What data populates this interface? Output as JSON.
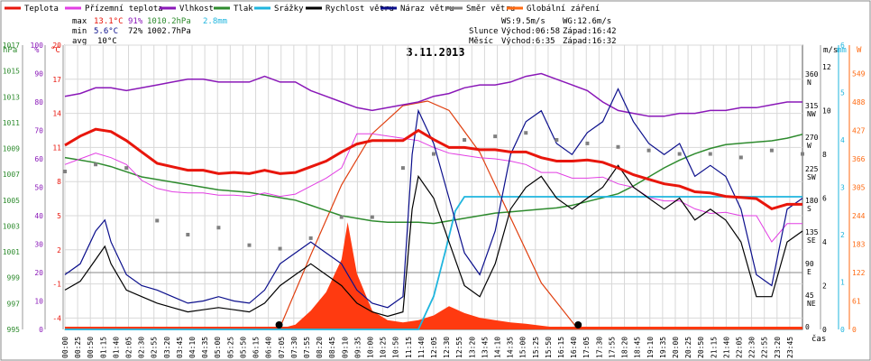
{
  "legend": [
    {
      "label": "Teplota",
      "color": "#e8160c"
    },
    {
      "label": "Přízemní teplota",
      "color": "#e23ee3"
    },
    {
      "label": "Vlhkost",
      "color": "#8a18b8"
    },
    {
      "label": "Tlak",
      "color": "#2e8b2e"
    },
    {
      "label": "Srážky",
      "color": "#1fb5de"
    },
    {
      "label": "Rychlost větru",
      "color": "#000000"
    },
    {
      "label": "Náraz větru",
      "color": "#0b0f8c"
    },
    {
      "label": "Směr větru",
      "color": "#808080"
    },
    {
      "label": "Globální záření",
      "color": "#ff6a12"
    }
  ],
  "stats": {
    "max": {
      "label": "max",
      "temp": "13.1°C",
      "hum": "91%",
      "press": "1010.2hPa",
      "rain": "2.8mm"
    },
    "min": {
      "label": "min",
      "temp": "5.6°C",
      "hum": "72%",
      "press": "1002.7hPa"
    },
    "avg": {
      "label": "avg",
      "temp": "10°C"
    }
  },
  "wind_info": {
    "ws": "WS:9.5m/s",
    "wg": "WG:12.6m/s"
  },
  "sun": {
    "label": "Slunce",
    "rise": "Východ:06:58",
    "set": "Západ:16:42"
  },
  "moon": {
    "label": "Měsíc",
    "rise": "Východ:6:35",
    "set": "Západ:16:32"
  },
  "chart_data": {
    "type": "line",
    "title": "3.11.2013",
    "xlabel": "čas",
    "x_ticks": [
      "00:00",
      "00:25",
      "00:50",
      "01:15",
      "01:40",
      "02:05",
      "02:30",
      "02:55",
      "03:20",
      "03:45",
      "04:10",
      "04:35",
      "05:00",
      "05:25",
      "05:50",
      "06:15",
      "06:40",
      "07:05",
      "07:30",
      "07:55",
      "08:20",
      "08:45",
      "09:10",
      "09:35",
      "10:00",
      "10:25",
      "10:50",
      "11:15",
      "11:40",
      "12:05",
      "12:30",
      "12:55",
      "13:20",
      "13:45",
      "14:10",
      "14:35",
      "15:00",
      "15:25",
      "15:50",
      "16:15",
      "16:40",
      "17:05",
      "17:30",
      "17:55",
      "18:20",
      "18:45",
      "19:10",
      "19:35",
      "20:00",
      "20:25",
      "20:50",
      "21:15",
      "21:40",
      "22:05",
      "22:30",
      "22:55",
      "23:20",
      "23:45"
    ],
    "axes": {
      "pressure": {
        "label": "hPa",
        "ticks": [
          "1017",
          "1015",
          "1013",
          "1011",
          "1009",
          "1007",
          "1005",
          "1003",
          "1001",
          "999",
          "997",
          "995"
        ],
        "range": [
          995,
          1017
        ]
      },
      "humidity": {
        "label": "%",
        "ticks": [
          "100",
          "90",
          "80",
          "70",
          "60",
          "50",
          "40",
          "30",
          "20",
          "10",
          "0"
        ],
        "range": [
          0,
          100
        ]
      },
      "temperature": {
        "label": "°C",
        "ticks": [
          "20",
          "17",
          "14",
          "11",
          "8",
          "5",
          "2",
          "-1",
          "-4"
        ],
        "range": [
          -5,
          20
        ]
      },
      "wind_direction": {
        "ticks": [
          "360",
          "315",
          "270",
          "225",
          "180",
          "135",
          "90",
          "45",
          "0"
        ],
        "compass": [
          "N",
          "NW",
          "W",
          "SW",
          "S",
          "SE",
          "E",
          "NE",
          ""
        ]
      },
      "wind_speed": {
        "label": "m/s",
        "ticks": [
          "12",
          "10",
          "8",
          "6",
          "4",
          "2",
          "0"
        ],
        "range": [
          0,
          13
        ]
      },
      "rain": {
        "label": "mm",
        "ticks": [
          "6",
          "5",
          "4",
          "3",
          "2",
          "1",
          "0"
        ],
        "range": [
          0,
          6
        ]
      },
      "radiation": {
        "label": "W",
        "ticks": [
          "549",
          "488",
          "427",
          "366",
          "305",
          "244",
          "183",
          "122",
          "61",
          "0"
        ],
        "range": [
          0,
          610
        ]
      }
    },
    "series": [
      {
        "name": "Teplota",
        "unit": "°C",
        "x": [
          0,
          0.5,
          1,
          1.5,
          2,
          2.5,
          3,
          3.5,
          4,
          4.5,
          5,
          5.5,
          6,
          6.5,
          7,
          7.5,
          8,
          8.5,
          9,
          9.5,
          10,
          10.5,
          11,
          11.5,
          12,
          12.5,
          13,
          13.5,
          14,
          14.5,
          15,
          15.5,
          16,
          16.5,
          17,
          17.5,
          18,
          18.5,
          19,
          19.5,
          20,
          20.5,
          21,
          21.5,
          22,
          22.5,
          23,
          23.5,
          24
        ],
        "y": [
          11.2,
          12,
          12.6,
          12.4,
          11.6,
          10.6,
          9.6,
          9.3,
          9.0,
          9.0,
          8.7,
          8.8,
          8.7,
          9.0,
          8.7,
          8.8,
          9.3,
          9.8,
          10.6,
          11.3,
          11.6,
          11.6,
          11.6,
          12.5,
          11.7,
          11.0,
          11.0,
          10.8,
          10.8,
          10.6,
          10.6,
          10.1,
          9.8,
          9.8,
          9.9,
          9.7,
          9.2,
          8.6,
          8.2,
          7.8,
          7.6,
          7.1,
          7.0,
          6.7,
          6.6,
          6.5,
          5.6,
          6.0,
          6.0
        ]
      },
      {
        "name": "Přízemní teplota",
        "unit": "°C",
        "x": [
          0,
          0.5,
          1,
          1.5,
          2,
          2.5,
          3,
          3.5,
          4,
          4.5,
          5,
          5.5,
          6,
          6.5,
          7,
          7.5,
          8,
          8.5,
          9,
          9.5,
          10,
          10.5,
          11,
          11.5,
          12,
          12.5,
          13,
          13.5,
          14,
          14.5,
          15,
          15.5,
          16,
          16.5,
          17,
          17.5,
          18,
          18.5,
          19,
          19.5,
          20,
          20.5,
          21,
          21.5,
          22,
          22.5,
          23,
          23.5,
          24
        ],
        "y": [
          9.5,
          10,
          10.5,
          10.1,
          9.5,
          8.1,
          7.4,
          7.1,
          7.0,
          7.0,
          6.8,
          6.8,
          6.7,
          7.0,
          6.7,
          6.9,
          7.6,
          8.3,
          9.2,
          12.2,
          12.2,
          12.0,
          11.8,
          11.6,
          11.0,
          10.5,
          10.3,
          10.1,
          10.0,
          9.8,
          9.5,
          8.8,
          8.8,
          8.3,
          8.3,
          8.4,
          7.8,
          7.5,
          6.6,
          6.3,
          6.3,
          5.6,
          5.2,
          5.3,
          5.0,
          5.0,
          2.7,
          4.3,
          4.3
        ]
      },
      {
        "name": "Vlhkost",
        "unit": "%",
        "x": [
          0,
          0.5,
          1,
          1.5,
          2,
          2.5,
          3,
          3.5,
          4,
          4.5,
          5,
          5.5,
          6,
          6.5,
          7,
          7.5,
          8,
          8.5,
          9,
          9.5,
          10,
          10.5,
          11,
          11.5,
          12,
          12.5,
          13,
          13.5,
          14,
          14.5,
          15,
          15.5,
          16,
          16.5,
          17,
          17.5,
          18,
          18.5,
          19,
          19.5,
          20,
          20.5,
          21,
          21.5,
          22,
          22.5,
          23,
          23.5,
          24
        ],
        "y": [
          82,
          83,
          85,
          85,
          84,
          85,
          86,
          87,
          88,
          88,
          87,
          87,
          87,
          89,
          87,
          87,
          84,
          82,
          80,
          78,
          77,
          78,
          79,
          80,
          82,
          83,
          85,
          86,
          86,
          87,
          89,
          90,
          88,
          86,
          84,
          80,
          77,
          76,
          75,
          75,
          76,
          76,
          77,
          77,
          78,
          78,
          79,
          80,
          80
        ]
      },
      {
        "name": "Tlak",
        "unit": "hPa",
        "x": [
          0,
          0.5,
          1,
          1.5,
          2,
          2.5,
          3,
          3.5,
          4,
          4.5,
          5,
          5.5,
          6,
          6.5,
          7,
          7.5,
          8,
          8.5,
          9,
          9.5,
          10,
          10.5,
          11,
          11.5,
          12,
          12.5,
          13,
          13.5,
          14,
          14.5,
          15,
          15.5,
          16,
          16.5,
          17,
          17.5,
          18,
          18.5,
          19,
          19.5,
          20,
          20.5,
          21,
          21.5,
          22,
          22.5,
          23,
          23.5,
          24
        ],
        "y": [
          1008.3,
          1008.1,
          1007.9,
          1007.6,
          1007.2,
          1006.8,
          1006.6,
          1006.4,
          1006.2,
          1006.0,
          1005.8,
          1005.7,
          1005.6,
          1005.4,
          1005.2,
          1005.0,
          1004.6,
          1004.2,
          1003.8,
          1003.6,
          1003.4,
          1003.3,
          1003.3,
          1003.3,
          1003.2,
          1003.4,
          1003.6,
          1003.8,
          1004.0,
          1004.1,
          1004.2,
          1004.3,
          1004.4,
          1004.6,
          1004.9,
          1005.2,
          1005.5,
          1006.1,
          1006.8,
          1007.5,
          1008.1,
          1008.6,
          1009.0,
          1009.3,
          1009.4,
          1009.5,
          1009.6,
          1009.8,
          1010.1
        ]
      },
      {
        "name": "Srážky",
        "unit": "mm",
        "x": [
          0,
          11.5,
          12.0,
          12.4,
          12.7,
          13.0,
          13.3,
          24
        ],
        "y": [
          0,
          0,
          0.7,
          1.7,
          2.5,
          2.8,
          2.8,
          2.8
        ]
      },
      {
        "name": "Rychlost větru",
        "unit": "m/s",
        "x": [
          0,
          0.5,
          1,
          1.3,
          1.5,
          2,
          2.5,
          3,
          3.5,
          4,
          4.5,
          5,
          5.5,
          6,
          6.5,
          7,
          7.5,
          8,
          8.5,
          9,
          9.5,
          10,
          10.5,
          11,
          11.3,
          11.5,
          12,
          12.5,
          13,
          13.5,
          14,
          14.5,
          15,
          15.5,
          16,
          16.5,
          17,
          17.5,
          18,
          18.5,
          19,
          19.5,
          20,
          20.5,
          21,
          21.5,
          22,
          22.5,
          23,
          23.5,
          24
        ],
        "y": [
          1.8,
          2.2,
          3.2,
          3.8,
          3.0,
          1.8,
          1.5,
          1.2,
          1.0,
          0.8,
          0.9,
          1.0,
          0.9,
          0.8,
          1.2,
          2.0,
          2.5,
          3.0,
          2.5,
          2.0,
          1.2,
          0.8,
          0.6,
          0.8,
          5.5,
          7.0,
          6.0,
          4.0,
          2.0,
          1.5,
          3.0,
          5.5,
          6.5,
          7.0,
          6.0,
          5.5,
          6.0,
          6.5,
          7.5,
          6.5,
          6.0,
          5.5,
          6.0,
          5.0,
          5.5,
          5.0,
          4.0,
          1.5,
          1.5,
          4.0,
          4.5
        ]
      },
      {
        "name": "Náraz větru",
        "unit": "m/s",
        "x": [
          0,
          0.5,
          1,
          1.3,
          1.5,
          2,
          2.5,
          3,
          3.5,
          4,
          4.5,
          5,
          5.5,
          6,
          6.5,
          7,
          7.5,
          8,
          8.5,
          9,
          9.5,
          10,
          10.5,
          11,
          11.3,
          11.5,
          12,
          12.5,
          13,
          13.5,
          14,
          14.5,
          15,
          15.5,
          16,
          16.5,
          17,
          17.5,
          18,
          18.5,
          19,
          19.5,
          20,
          20.5,
          21,
          21.5,
          22,
          22.5,
          23,
          23.5,
          24
        ],
        "y": [
          2.5,
          3.0,
          4.5,
          5.0,
          4.0,
          2.5,
          2.0,
          1.8,
          1.5,
          1.2,
          1.3,
          1.5,
          1.3,
          1.2,
          1.8,
          3.0,
          3.5,
          4.0,
          3.5,
          3.0,
          1.8,
          1.2,
          1.0,
          1.5,
          8.0,
          10.0,
          8.5,
          6.0,
          3.5,
          2.5,
          4.5,
          8.0,
          9.5,
          10.0,
          8.5,
          8.0,
          9.0,
          9.5,
          11.0,
          9.5,
          8.5,
          8.0,
          8.5,
          7.0,
          7.5,
          7.0,
          5.5,
          2.5,
          2.0,
          5.5,
          6.0
        ]
      },
      {
        "name": "Směr větru",
        "unit": "°",
        "x": [
          0,
          1,
          2,
          3,
          4,
          5,
          6,
          7,
          8,
          9,
          10,
          11,
          12,
          13,
          14,
          15,
          16,
          17,
          18,
          19,
          20,
          21,
          22,
          23,
          24
        ],
        "y": [
          225,
          235,
          230,
          155,
          135,
          145,
          120,
          115,
          130,
          160,
          160,
          230,
          250,
          270,
          275,
          280,
          270,
          265,
          260,
          255,
          250,
          250,
          245,
          255,
          250
        ]
      },
      {
        "name": "Globální záření",
        "unit": "W/m2",
        "x": [
          6.9,
          7.5,
          8.0,
          8.5,
          9.0,
          9.2,
          9.5,
          10.0,
          10.5,
          11.0,
          11.5,
          12.0,
          12.5,
          13.0,
          13.5,
          14.0,
          14.5,
          15.0,
          15.5,
          16.0,
          16.7
        ],
        "y": [
          0,
          10,
          40,
          80,
          150,
          230,
          120,
          40,
          20,
          15,
          20,
          30,
          50,
          35,
          25,
          20,
          15,
          12,
          8,
          4,
          0
        ]
      },
      {
        "name": "Globální záření (max)",
        "unit": "W/m2",
        "x": [
          6.97,
          8,
          9,
          10,
          11,
          11.8,
          12.5,
          13.5,
          14.5,
          15.5,
          16.7
        ],
        "y": [
          0,
          160,
          310,
          420,
          480,
          490,
          470,
          380,
          240,
          100,
          0
        ]
      }
    ]
  }
}
